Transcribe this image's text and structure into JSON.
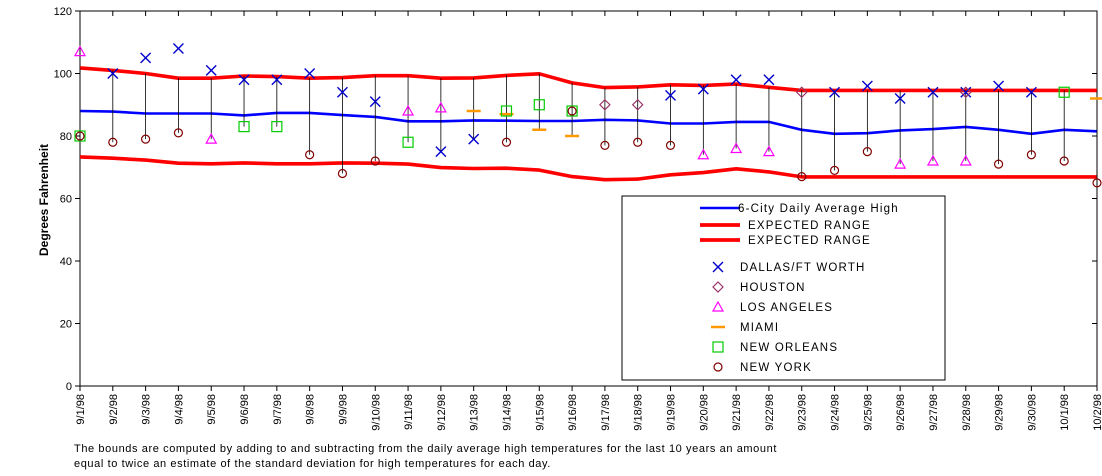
{
  "chart_data": {
    "type": "line",
    "ylabel": "Degrees Fahrenheit",
    "ylim": [
      0,
      120
    ],
    "yticks": [
      0,
      20,
      40,
      60,
      80,
      100,
      120
    ],
    "grid": false,
    "legend_position": "lower-right",
    "categories": [
      "9/1/98",
      "9/2/98",
      "9/3/98",
      "9/4/98",
      "9/5/98",
      "9/6/98",
      "9/7/98",
      "9/8/98",
      "9/9/98",
      "9/10/98",
      "9/11/98",
      "9/12/98",
      "9/13/98",
      "9/14/98",
      "9/15/98",
      "9/16/98",
      "9/17/98",
      "9/18/98",
      "9/19/98",
      "9/20/98",
      "9/21/98",
      "9/22/98",
      "9/23/98",
      "9/24/98",
      "9/25/98",
      "9/26/98",
      "9/27/98",
      "9/28/98",
      "9/29/98",
      "9/30/98",
      "10/1/98",
      "10/2/98"
    ],
    "lines": [
      {
        "name": "6-City Daily Average High",
        "color": "#0000ff",
        "values": [
          88,
          87.8,
          87.2,
          87.2,
          87.2,
          86.6,
          87.4,
          87.4,
          86.7,
          86.1,
          84.7,
          84.7,
          85,
          84.9,
          84.8,
          84.8,
          85.2,
          85,
          84,
          84,
          84.5,
          84.5,
          82,
          80.7,
          80.9,
          81.8,
          82.2,
          82.9,
          82,
          80.7,
          82,
          81.5
        ]
      },
      {
        "name": "EXPECTED RANGE",
        "color": "#ff0000",
        "values": [
          101.8,
          101,
          100,
          98.5,
          98.5,
          99.2,
          99,
          98.5,
          98.7,
          99.3,
          99.3,
          98.5,
          98.6,
          99.4,
          99.9,
          97,
          95.5,
          95.7,
          96.4,
          96.2,
          96.6,
          95.6,
          94.6,
          94.6,
          94.6,
          94.6,
          94.6,
          94.6,
          94.6,
          94.6,
          94.6,
          94.6
        ]
      },
      {
        "name": "EXPECTED RANGE",
        "color": "#ff0000",
        "values": [
          73.3,
          72.9,
          72.3,
          71.3,
          71.1,
          71.4,
          71.1,
          71.1,
          71.4,
          71.3,
          71,
          69.9,
          69.6,
          69.7,
          69.1,
          67,
          66,
          66.2,
          67.6,
          68.3,
          69.5,
          68.5,
          66.9,
          66.9,
          66.9,
          66.9,
          66.9,
          66.9,
          66.9,
          66.9,
          66.9,
          66.9
        ]
      }
    ],
    "marker_series": [
      {
        "name": "DALLAS/FT WORTH",
        "marker": "x",
        "color": "#0000cc",
        "points": [
          [
            1,
            100
          ],
          [
            2,
            105
          ],
          [
            3,
            108
          ],
          [
            4,
            101
          ],
          [
            5,
            98
          ],
          [
            6,
            98
          ],
          [
            7,
            100
          ],
          [
            8,
            94
          ],
          [
            9,
            91
          ],
          [
            11,
            75
          ],
          [
            12,
            79
          ],
          [
            18,
            93
          ],
          [
            19,
            95
          ],
          [
            20,
            98
          ],
          [
            21,
            98
          ],
          [
            23,
            94
          ],
          [
            24,
            96
          ],
          [
            25,
            92
          ],
          [
            26,
            94
          ],
          [
            27,
            94
          ],
          [
            28,
            96
          ],
          [
            29,
            94
          ]
        ]
      },
      {
        "name": "HOUSTON",
        "marker": "diamond",
        "color": "#993366",
        "points": [
          [
            16,
            90
          ],
          [
            17,
            90
          ],
          [
            22,
            94
          ],
          [
            27,
            94
          ]
        ]
      },
      {
        "name": "LOS ANGELES",
        "marker": "triangle",
        "color": "#ff00ff",
        "points": [
          [
            0,
            107
          ],
          [
            4,
            79
          ],
          [
            10,
            88
          ],
          [
            11,
            89
          ],
          [
            19,
            74
          ],
          [
            20,
            76
          ],
          [
            21,
            75
          ],
          [
            25,
            71
          ],
          [
            26,
            72
          ],
          [
            27,
            72
          ]
        ]
      },
      {
        "name": "MIAMI",
        "marker": "dash",
        "color": "#ff9900",
        "points": [
          [
            12,
            88
          ],
          [
            13,
            87
          ],
          [
            14,
            82
          ],
          [
            15,
            80
          ],
          [
            31,
            92
          ]
        ]
      },
      {
        "name": "NEW ORLEANS",
        "marker": "square",
        "color": "#00cc00",
        "points": [
          [
            0,
            80
          ],
          [
            5,
            83
          ],
          [
            6,
            83
          ],
          [
            10,
            78
          ],
          [
            13,
            88
          ],
          [
            14,
            90
          ],
          [
            15,
            88
          ],
          [
            30,
            94
          ]
        ]
      },
      {
        "name": "NEW YORK",
        "marker": "circle",
        "color": "#800000",
        "points": [
          [
            0,
            80
          ],
          [
            1,
            78
          ],
          [
            2,
            79
          ],
          [
            3,
            81
          ],
          [
            7,
            74
          ],
          [
            8,
            68
          ],
          [
            9,
            72
          ],
          [
            13,
            78
          ],
          [
            15,
            88
          ],
          [
            16,
            77
          ],
          [
            17,
            78
          ],
          [
            18,
            77
          ],
          [
            22,
            67
          ],
          [
            23,
            69
          ],
          [
            24,
            75
          ],
          [
            28,
            71
          ],
          [
            29,
            74
          ],
          [
            30,
            72
          ],
          [
            31,
            65
          ]
        ]
      }
    ],
    "footnote_line1": "The bounds are computed by adding to and subtracting from the daily average high temperatures for the last 10 years an amount",
    "footnote_line2": "equal to twice an estimate of the standard deviation for high temperatures for each day."
  },
  "legend": [
    {
      "label": "6-City Daily Average High",
      "kind": "line",
      "color": "#0000ff"
    },
    {
      "label": "EXPECTED RANGE",
      "kind": "line",
      "color": "#ff0000"
    },
    {
      "label": "EXPECTED RANGE",
      "kind": "line",
      "color": "#ff0000"
    },
    {
      "label": "DALLAS/FT WORTH",
      "kind": "x",
      "color": "#0000cc"
    },
    {
      "label": "HOUSTON",
      "kind": "diamond",
      "color": "#993366"
    },
    {
      "label": "LOS ANGELES",
      "kind": "triangle",
      "color": "#ff00ff"
    },
    {
      "label": "MIAMI",
      "kind": "dash",
      "color": "#ff9900"
    },
    {
      "label": "NEW ORLEANS",
      "kind": "square",
      "color": "#00cc00"
    },
    {
      "label": "NEW YORK",
      "kind": "circle",
      "color": "#800000"
    }
  ]
}
